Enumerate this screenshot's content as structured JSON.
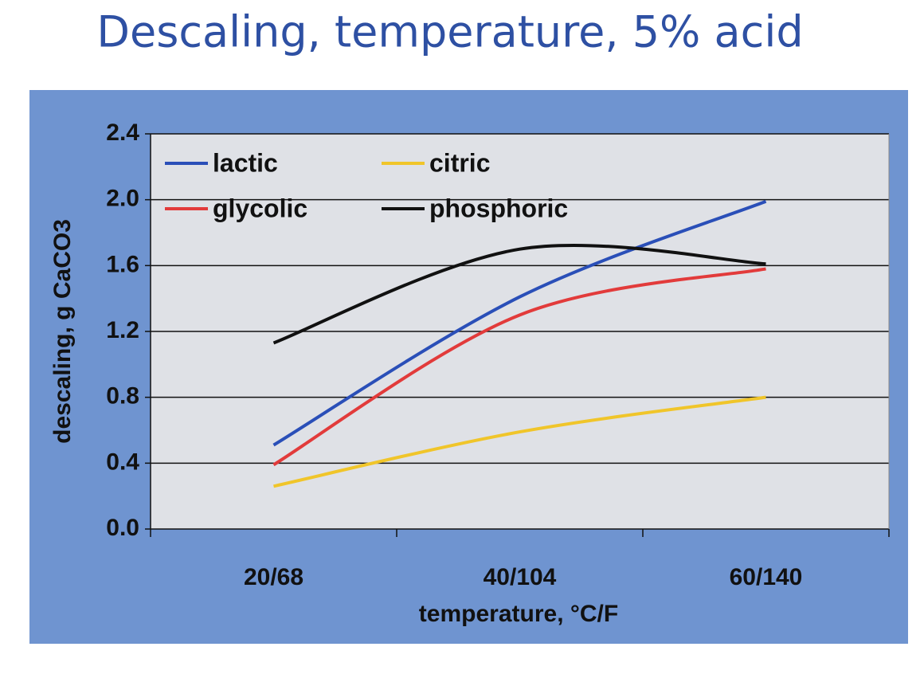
{
  "chart_data": {
    "type": "line",
    "title": "Descaling, temperature, 5% acid",
    "x_label": "temperature, °C/F",
    "y_label": "descaling, g CaCO3",
    "categories": [
      "20/68",
      "40/104",
      "60/140"
    ],
    "series": [
      {
        "name": "lactic",
        "color": "#2a4fb8",
        "values": [
          0.51,
          1.41,
          1.99
        ]
      },
      {
        "name": "citric",
        "color": "#f0c52a",
        "values": [
          0.26,
          0.59,
          0.8
        ]
      },
      {
        "name": "glycolic",
        "color": "#e23b3b",
        "values": [
          0.39,
          1.3,
          1.58
        ]
      },
      {
        "name": "phosphoric",
        "color": "#111111",
        "values": [
          1.13,
          1.7,
          1.61
        ]
      }
    ],
    "ylim": [
      0,
      2.4
    ],
    "yticks": [
      {
        "value": 0,
        "label": "0.0"
      },
      {
        "value": 0.4,
        "label": "0.4"
      },
      {
        "value": 0.8,
        "label": "0.8"
      },
      {
        "value": 1.2,
        "label": "1.2"
      },
      {
        "value": 1.6,
        "label": "1.6"
      },
      {
        "value": 2,
        "label": "2.0"
      },
      {
        "value": 2.4,
        "label": "2.4"
      }
    ],
    "grid": true,
    "legend": "upper left",
    "smooth": true
  }
}
